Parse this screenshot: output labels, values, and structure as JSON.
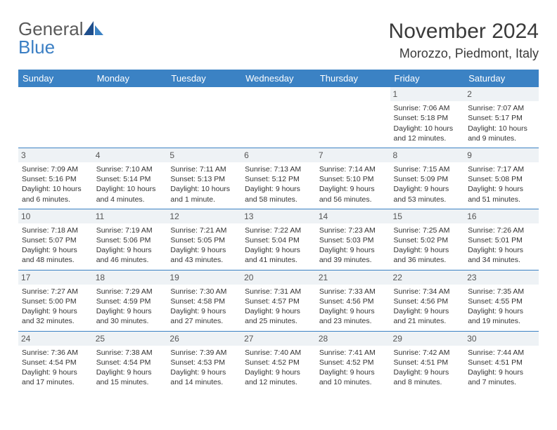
{
  "logo": {
    "text_gray": "General",
    "text_blue": "Blue"
  },
  "title": "November 2024",
  "location": "Morozzo, Piedmont, Italy",
  "colors": {
    "header_bg": "#3b82c4",
    "header_text": "#ffffff",
    "row_border": "#3b82c4",
    "daynum_bg": "#eef2f5",
    "body_text": "#333333",
    "logo_gray": "#5a5a5a",
    "logo_blue": "#3b7fc4"
  },
  "weekdays": [
    "Sunday",
    "Monday",
    "Tuesday",
    "Wednesday",
    "Thursday",
    "Friday",
    "Saturday"
  ],
  "weeks": [
    [
      {
        "day": "",
        "sunrise": "",
        "sunset": "",
        "daylight": ""
      },
      {
        "day": "",
        "sunrise": "",
        "sunset": "",
        "daylight": ""
      },
      {
        "day": "",
        "sunrise": "",
        "sunset": "",
        "daylight": ""
      },
      {
        "day": "",
        "sunrise": "",
        "sunset": "",
        "daylight": ""
      },
      {
        "day": "",
        "sunrise": "",
        "sunset": "",
        "daylight": ""
      },
      {
        "day": "1",
        "sunrise": "Sunrise: 7:06 AM",
        "sunset": "Sunset: 5:18 PM",
        "daylight": "Daylight: 10 hours and 12 minutes."
      },
      {
        "day": "2",
        "sunrise": "Sunrise: 7:07 AM",
        "sunset": "Sunset: 5:17 PM",
        "daylight": "Daylight: 10 hours and 9 minutes."
      }
    ],
    [
      {
        "day": "3",
        "sunrise": "Sunrise: 7:09 AM",
        "sunset": "Sunset: 5:16 PM",
        "daylight": "Daylight: 10 hours and 6 minutes."
      },
      {
        "day": "4",
        "sunrise": "Sunrise: 7:10 AM",
        "sunset": "Sunset: 5:14 PM",
        "daylight": "Daylight: 10 hours and 4 minutes."
      },
      {
        "day": "5",
        "sunrise": "Sunrise: 7:11 AM",
        "sunset": "Sunset: 5:13 PM",
        "daylight": "Daylight: 10 hours and 1 minute."
      },
      {
        "day": "6",
        "sunrise": "Sunrise: 7:13 AM",
        "sunset": "Sunset: 5:12 PM",
        "daylight": "Daylight: 9 hours and 58 minutes."
      },
      {
        "day": "7",
        "sunrise": "Sunrise: 7:14 AM",
        "sunset": "Sunset: 5:10 PM",
        "daylight": "Daylight: 9 hours and 56 minutes."
      },
      {
        "day": "8",
        "sunrise": "Sunrise: 7:15 AM",
        "sunset": "Sunset: 5:09 PM",
        "daylight": "Daylight: 9 hours and 53 minutes."
      },
      {
        "day": "9",
        "sunrise": "Sunrise: 7:17 AM",
        "sunset": "Sunset: 5:08 PM",
        "daylight": "Daylight: 9 hours and 51 minutes."
      }
    ],
    [
      {
        "day": "10",
        "sunrise": "Sunrise: 7:18 AM",
        "sunset": "Sunset: 5:07 PM",
        "daylight": "Daylight: 9 hours and 48 minutes."
      },
      {
        "day": "11",
        "sunrise": "Sunrise: 7:19 AM",
        "sunset": "Sunset: 5:06 PM",
        "daylight": "Daylight: 9 hours and 46 minutes."
      },
      {
        "day": "12",
        "sunrise": "Sunrise: 7:21 AM",
        "sunset": "Sunset: 5:05 PM",
        "daylight": "Daylight: 9 hours and 43 minutes."
      },
      {
        "day": "13",
        "sunrise": "Sunrise: 7:22 AM",
        "sunset": "Sunset: 5:04 PM",
        "daylight": "Daylight: 9 hours and 41 minutes."
      },
      {
        "day": "14",
        "sunrise": "Sunrise: 7:23 AM",
        "sunset": "Sunset: 5:03 PM",
        "daylight": "Daylight: 9 hours and 39 minutes."
      },
      {
        "day": "15",
        "sunrise": "Sunrise: 7:25 AM",
        "sunset": "Sunset: 5:02 PM",
        "daylight": "Daylight: 9 hours and 36 minutes."
      },
      {
        "day": "16",
        "sunrise": "Sunrise: 7:26 AM",
        "sunset": "Sunset: 5:01 PM",
        "daylight": "Daylight: 9 hours and 34 minutes."
      }
    ],
    [
      {
        "day": "17",
        "sunrise": "Sunrise: 7:27 AM",
        "sunset": "Sunset: 5:00 PM",
        "daylight": "Daylight: 9 hours and 32 minutes."
      },
      {
        "day": "18",
        "sunrise": "Sunrise: 7:29 AM",
        "sunset": "Sunset: 4:59 PM",
        "daylight": "Daylight: 9 hours and 30 minutes."
      },
      {
        "day": "19",
        "sunrise": "Sunrise: 7:30 AM",
        "sunset": "Sunset: 4:58 PM",
        "daylight": "Daylight: 9 hours and 27 minutes."
      },
      {
        "day": "20",
        "sunrise": "Sunrise: 7:31 AM",
        "sunset": "Sunset: 4:57 PM",
        "daylight": "Daylight: 9 hours and 25 minutes."
      },
      {
        "day": "21",
        "sunrise": "Sunrise: 7:33 AM",
        "sunset": "Sunset: 4:56 PM",
        "daylight": "Daylight: 9 hours and 23 minutes."
      },
      {
        "day": "22",
        "sunrise": "Sunrise: 7:34 AM",
        "sunset": "Sunset: 4:56 PM",
        "daylight": "Daylight: 9 hours and 21 minutes."
      },
      {
        "day": "23",
        "sunrise": "Sunrise: 7:35 AM",
        "sunset": "Sunset: 4:55 PM",
        "daylight": "Daylight: 9 hours and 19 minutes."
      }
    ],
    [
      {
        "day": "24",
        "sunrise": "Sunrise: 7:36 AM",
        "sunset": "Sunset: 4:54 PM",
        "daylight": "Daylight: 9 hours and 17 minutes."
      },
      {
        "day": "25",
        "sunrise": "Sunrise: 7:38 AM",
        "sunset": "Sunset: 4:54 PM",
        "daylight": "Daylight: 9 hours and 15 minutes."
      },
      {
        "day": "26",
        "sunrise": "Sunrise: 7:39 AM",
        "sunset": "Sunset: 4:53 PM",
        "daylight": "Daylight: 9 hours and 14 minutes."
      },
      {
        "day": "27",
        "sunrise": "Sunrise: 7:40 AM",
        "sunset": "Sunset: 4:52 PM",
        "daylight": "Daylight: 9 hours and 12 minutes."
      },
      {
        "day": "28",
        "sunrise": "Sunrise: 7:41 AM",
        "sunset": "Sunset: 4:52 PM",
        "daylight": "Daylight: 9 hours and 10 minutes."
      },
      {
        "day": "29",
        "sunrise": "Sunrise: 7:42 AM",
        "sunset": "Sunset: 4:51 PM",
        "daylight": "Daylight: 9 hours and 8 minutes."
      },
      {
        "day": "30",
        "sunrise": "Sunrise: 7:44 AM",
        "sunset": "Sunset: 4:51 PM",
        "daylight": "Daylight: 9 hours and 7 minutes."
      }
    ]
  ]
}
